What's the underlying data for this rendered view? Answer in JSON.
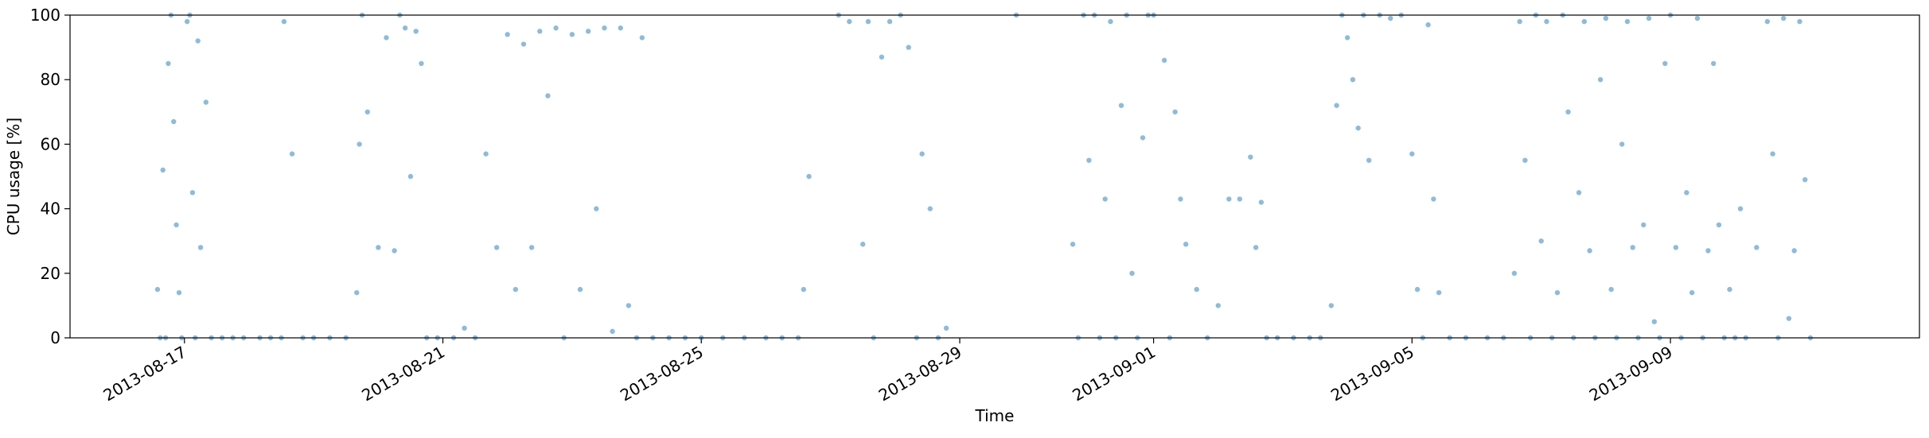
{
  "chart_data": {
    "type": "scatter",
    "x_label": "Time",
    "y_label": "CPU usage [%]",
    "color": "#1f77b4",
    "grid": false,
    "xlim": [
      "2013-08-15T05:30",
      "2013-09-12T20:30"
    ],
    "xticks": [
      "2013-08-17",
      "2013-08-21",
      "2013-08-25",
      "2013-08-29",
      "2013-09-01",
      "2013-09-05",
      "2013-09-09"
    ],
    "ylim": [
      0,
      100
    ],
    "yticks": [
      0,
      20,
      40,
      60,
      80,
      100
    ],
    "x": [
      "2013-08-16T14:00",
      "2013-08-16T15:00",
      "2013-08-16T16:00",
      "2013-08-16T17:00",
      "2013-08-16T18:00",
      "2013-08-16T19:00",
      "2013-08-16T20:00",
      "2013-08-16T21:00",
      "2013-08-16T22:00",
      "2013-08-16T23:00",
      "2013-08-17T01:00",
      "2013-08-17T02:00",
      "2013-08-17T03:00",
      "2013-08-17T04:00",
      "2013-08-17T05:00",
      "2013-08-17T06:00",
      "2013-08-17T08:00",
      "2013-08-17T10:00",
      "2013-08-17T14:00",
      "2013-08-17T18:00",
      "2013-08-17T22:00",
      "2013-08-18T04:00",
      "2013-08-18T08:00",
      "2013-08-18T12:00",
      "2013-08-18T13:00",
      "2013-08-18T16:00",
      "2013-08-18T20:00",
      "2013-08-19T00:00",
      "2013-08-19T06:00",
      "2013-08-19T12:00",
      "2013-08-19T16:00",
      "2013-08-19T17:00",
      "2013-08-19T18:00",
      "2013-08-19T20:00",
      "2013-08-20T00:00",
      "2013-08-20T03:00",
      "2013-08-20T06:00",
      "2013-08-20T08:00",
      "2013-08-20T10:00",
      "2013-08-20T12:00",
      "2013-08-20T14:00",
      "2013-08-20T16:00",
      "2013-08-20T18:00",
      "2013-08-20T22:00",
      "2013-08-21T04:00",
      "2013-08-21T08:00",
      "2013-08-21T12:00",
      "2013-08-21T16:00",
      "2013-08-21T20:00",
      "2013-08-22T00:00",
      "2013-08-22T03:00",
      "2013-08-22T06:00",
      "2013-08-22T09:00",
      "2013-08-22T12:00",
      "2013-08-22T15:00",
      "2013-08-22T18:00",
      "2013-08-22T21:00",
      "2013-08-23T00:00",
      "2013-08-23T03:00",
      "2013-08-23T06:00",
      "2013-08-23T09:00",
      "2013-08-23T12:00",
      "2013-08-23T15:00",
      "2013-08-23T18:00",
      "2013-08-23T21:00",
      "2013-08-24T00:00",
      "2013-08-24T02:00",
      "2013-08-24T06:00",
      "2013-08-24T12:00",
      "2013-08-24T18:00",
      "2013-08-25T00:00",
      "2013-08-25T08:00",
      "2013-08-25T16:00",
      "2013-08-26T00:00",
      "2013-08-26T06:00",
      "2013-08-26T12:00",
      "2013-08-26T14:00",
      "2013-08-26T16:00",
      "2013-08-27T03:00",
      "2013-08-27T07:00",
      "2013-08-27T12:00",
      "2013-08-27T14:00",
      "2013-08-27T16:00",
      "2013-08-27T19:00",
      "2013-08-27T22:00",
      "2013-08-28T02:00",
      "2013-08-28T05:00",
      "2013-08-28T08:00",
      "2013-08-28T10:00",
      "2013-08-28T13:00",
      "2013-08-28T16:00",
      "2013-08-28T19:00",
      "2013-08-29T21:00",
      "2013-08-30T18:00",
      "2013-08-30T20:00",
      "2013-08-30T22:00",
      "2013-08-31T00:00",
      "2013-08-31T02:00",
      "2013-08-31T04:00",
      "2013-08-31T06:00",
      "2013-08-31T08:00",
      "2013-08-31T10:00",
      "2013-08-31T12:00",
      "2013-08-31T14:00",
      "2013-08-31T16:00",
      "2013-08-31T18:00",
      "2013-08-31T20:00",
      "2013-08-31T22:00",
      "2013-09-01T00:00",
      "2013-09-01T04:00",
      "2013-09-01T06:00",
      "2013-09-01T08:00",
      "2013-09-01T10:00",
      "2013-09-01T12:00",
      "2013-09-01T16:00",
      "2013-09-01T20:00",
      "2013-09-02T00:00",
      "2013-09-02T04:00",
      "2013-09-02T08:00",
      "2013-09-02T12:00",
      "2013-09-02T14:00",
      "2013-09-02T16:00",
      "2013-09-02T18:00",
      "2013-09-02T22:00",
      "2013-09-03T04:00",
      "2013-09-03T10:00",
      "2013-09-03T14:00",
      "2013-09-03T18:00",
      "2013-09-03T20:00",
      "2013-09-03T22:00",
      "2013-09-04T00:00",
      "2013-09-04T02:00",
      "2013-09-04T04:00",
      "2013-09-04T06:00",
      "2013-09-04T08:00",
      "2013-09-04T12:00",
      "2013-09-04T16:00",
      "2013-09-04T20:00",
      "2013-09-05T00:00",
      "2013-09-05T02:00",
      "2013-09-05T04:00",
      "2013-09-05T06:00",
      "2013-09-05T08:00",
      "2013-09-05T10:00",
      "2013-09-05T14:00",
      "2013-09-05T20:00",
      "2013-09-06T04:00",
      "2013-09-06T10:00",
      "2013-09-06T14:00",
      "2013-09-06T16:00",
      "2013-09-06T18:00",
      "2013-09-06T20:00",
      "2013-09-06T22:00",
      "2013-09-07T00:00",
      "2013-09-07T02:00",
      "2013-09-07T04:00",
      "2013-09-07T06:00",
      "2013-09-07T08:00",
      "2013-09-07T10:00",
      "2013-09-07T12:00",
      "2013-09-07T14:00",
      "2013-09-07T16:00",
      "2013-09-07T18:00",
      "2013-09-07T20:00",
      "2013-09-07T22:00",
      "2013-09-08T00:00",
      "2013-09-08T02:00",
      "2013-09-08T04:00",
      "2013-09-08T06:00",
      "2013-09-08T08:00",
      "2013-09-08T10:00",
      "2013-09-08T12:00",
      "2013-09-08T14:00",
      "2013-09-08T16:00",
      "2013-09-08T18:00",
      "2013-09-08T20:00",
      "2013-09-08T22:00",
      "2013-09-09T00:00",
      "2013-09-09T02:00",
      "2013-09-09T04:00",
      "2013-09-09T06:00",
      "2013-09-09T08:00",
      "2013-09-09T10:00",
      "2013-09-09T12:00",
      "2013-09-09T14:00",
      "2013-09-09T16:00",
      "2013-09-09T18:00",
      "2013-09-09T20:00",
      "2013-09-09T22:00",
      "2013-09-10T00:00",
      "2013-09-10T02:00",
      "2013-09-10T04:00",
      "2013-09-10T08:00",
      "2013-09-10T12:00",
      "2013-09-10T14:00",
      "2013-09-10T16:00",
      "2013-09-10T18:00",
      "2013-09-10T20:00",
      "2013-09-10T22:00",
      "2013-09-11T00:00",
      "2013-09-11T02:00",
      "2013-09-11T04:00"
    ],
    "values": [
      15,
      0,
      52,
      0,
      85,
      100,
      67,
      35,
      14,
      0,
      98,
      100,
      45,
      0,
      92,
      28,
      73,
      0,
      0,
      0,
      0,
      0,
      0,
      0,
      98,
      57,
      0,
      0,
      0,
      0,
      14,
      60,
      100,
      70,
      28,
      93,
      27,
      100,
      96,
      50,
      95,
      85,
      0,
      0,
      0,
      3,
      0,
      57,
      28,
      94,
      15,
      91,
      28,
      95,
      75,
      96,
      0,
      94,
      15,
      95,
      40,
      96,
      2,
      96,
      10,
      0,
      93,
      0,
      0,
      0,
      0,
      0,
      0,
      0,
      0,
      0,
      15,
      50,
      100,
      98,
      29,
      98,
      0,
      87,
      98,
      100,
      90,
      0,
      57,
      40,
      0,
      3,
      100,
      29,
      0,
      100,
      55,
      100,
      0,
      43,
      98,
      0,
      72,
      100,
      20,
      0,
      62,
      100,
      100,
      86,
      0,
      70,
      43,
      29,
      15,
      0,
      10,
      43,
      43,
      56,
      28,
      42,
      0,
      0,
      0,
      0,
      0,
      10,
      72,
      100,
      93,
      80,
      65,
      100,
      55,
      100,
      99,
      100,
      57,
      15,
      0,
      97,
      43,
      14,
      0,
      0,
      0,
      0,
      20,
      98,
      55,
      0,
      100,
      30,
      98,
      0,
      14,
      100,
      70,
      0,
      45,
      98,
      27,
      0,
      80,
      99,
      15,
      0,
      60,
      98,
      28,
      0,
      35,
      99,
      5,
      0,
      85,
      100,
      28,
      0,
      45,
      14,
      99,
      0,
      27,
      85,
      35,
      0,
      15,
      0,
      40,
      0,
      28,
      98,
      57,
      0,
      99,
      6,
      27,
      98,
      49,
      0
    ]
  }
}
